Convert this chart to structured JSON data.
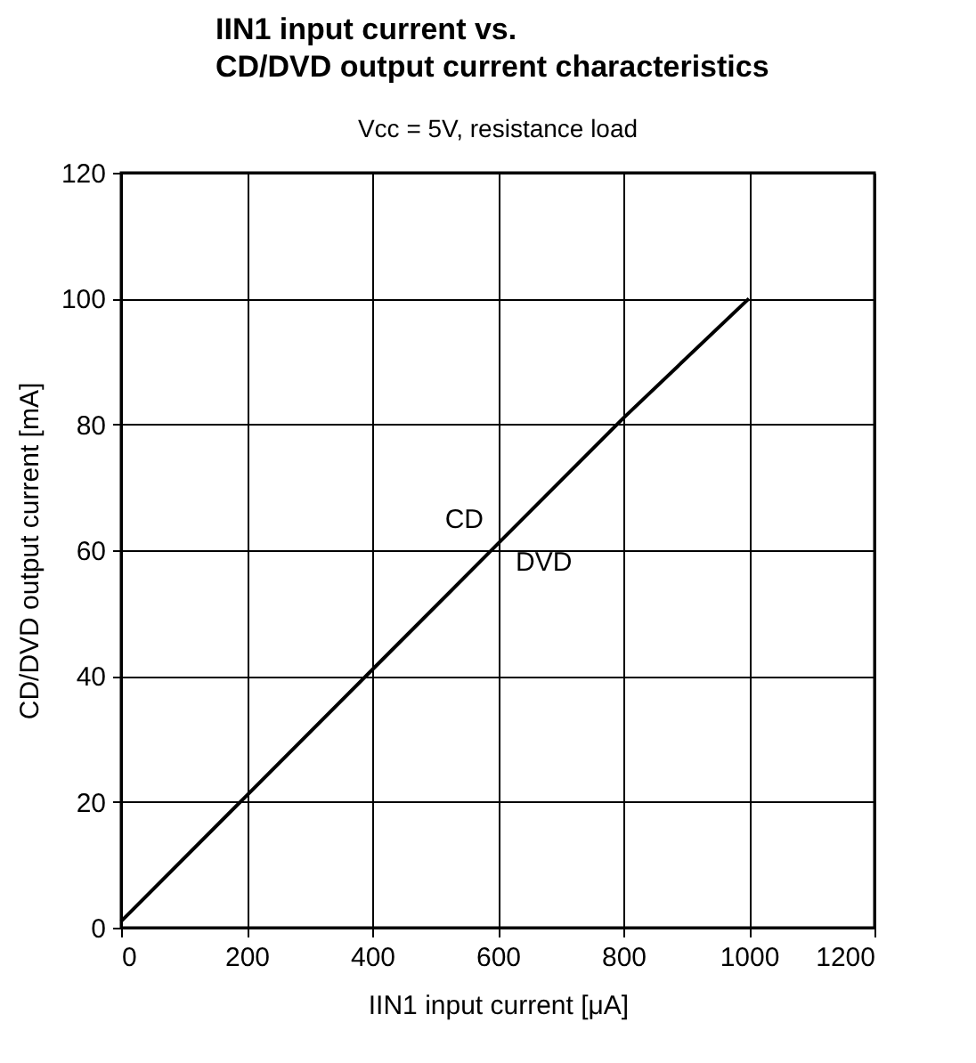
{
  "chart_data": {
    "type": "line",
    "title": "IIN1 input current vs.\nCD/DVD output current characteristics",
    "subtitle": "Vcc = 5V, resistance load",
    "xlabel": "IIN1 input current [μA]",
    "ylabel": "CD/DVD output current [mA]",
    "x": [
      0,
      200,
      400,
      600,
      800,
      1000
    ],
    "series": [
      {
        "color": "#000000",
        "values": [
          1,
          21,
          41,
          61,
          81,
          100
        ]
      }
    ],
    "xlim": [
      0,
      1200
    ],
    "xticks": [
      0,
      200,
      400,
      600,
      800,
      1000,
      1200
    ],
    "ylim": [
      0,
      120
    ],
    "yticks": [
      0,
      20,
      40,
      60,
      80,
      100,
      120
    ],
    "grid": true,
    "marker": "none",
    "line_style": "solid",
    "annotations": [
      {
        "text": "CD",
        "x": 600,
        "y": 61
      },
      {
        "text": "DVD",
        "x": 600,
        "y": 61
      }
    ]
  }
}
